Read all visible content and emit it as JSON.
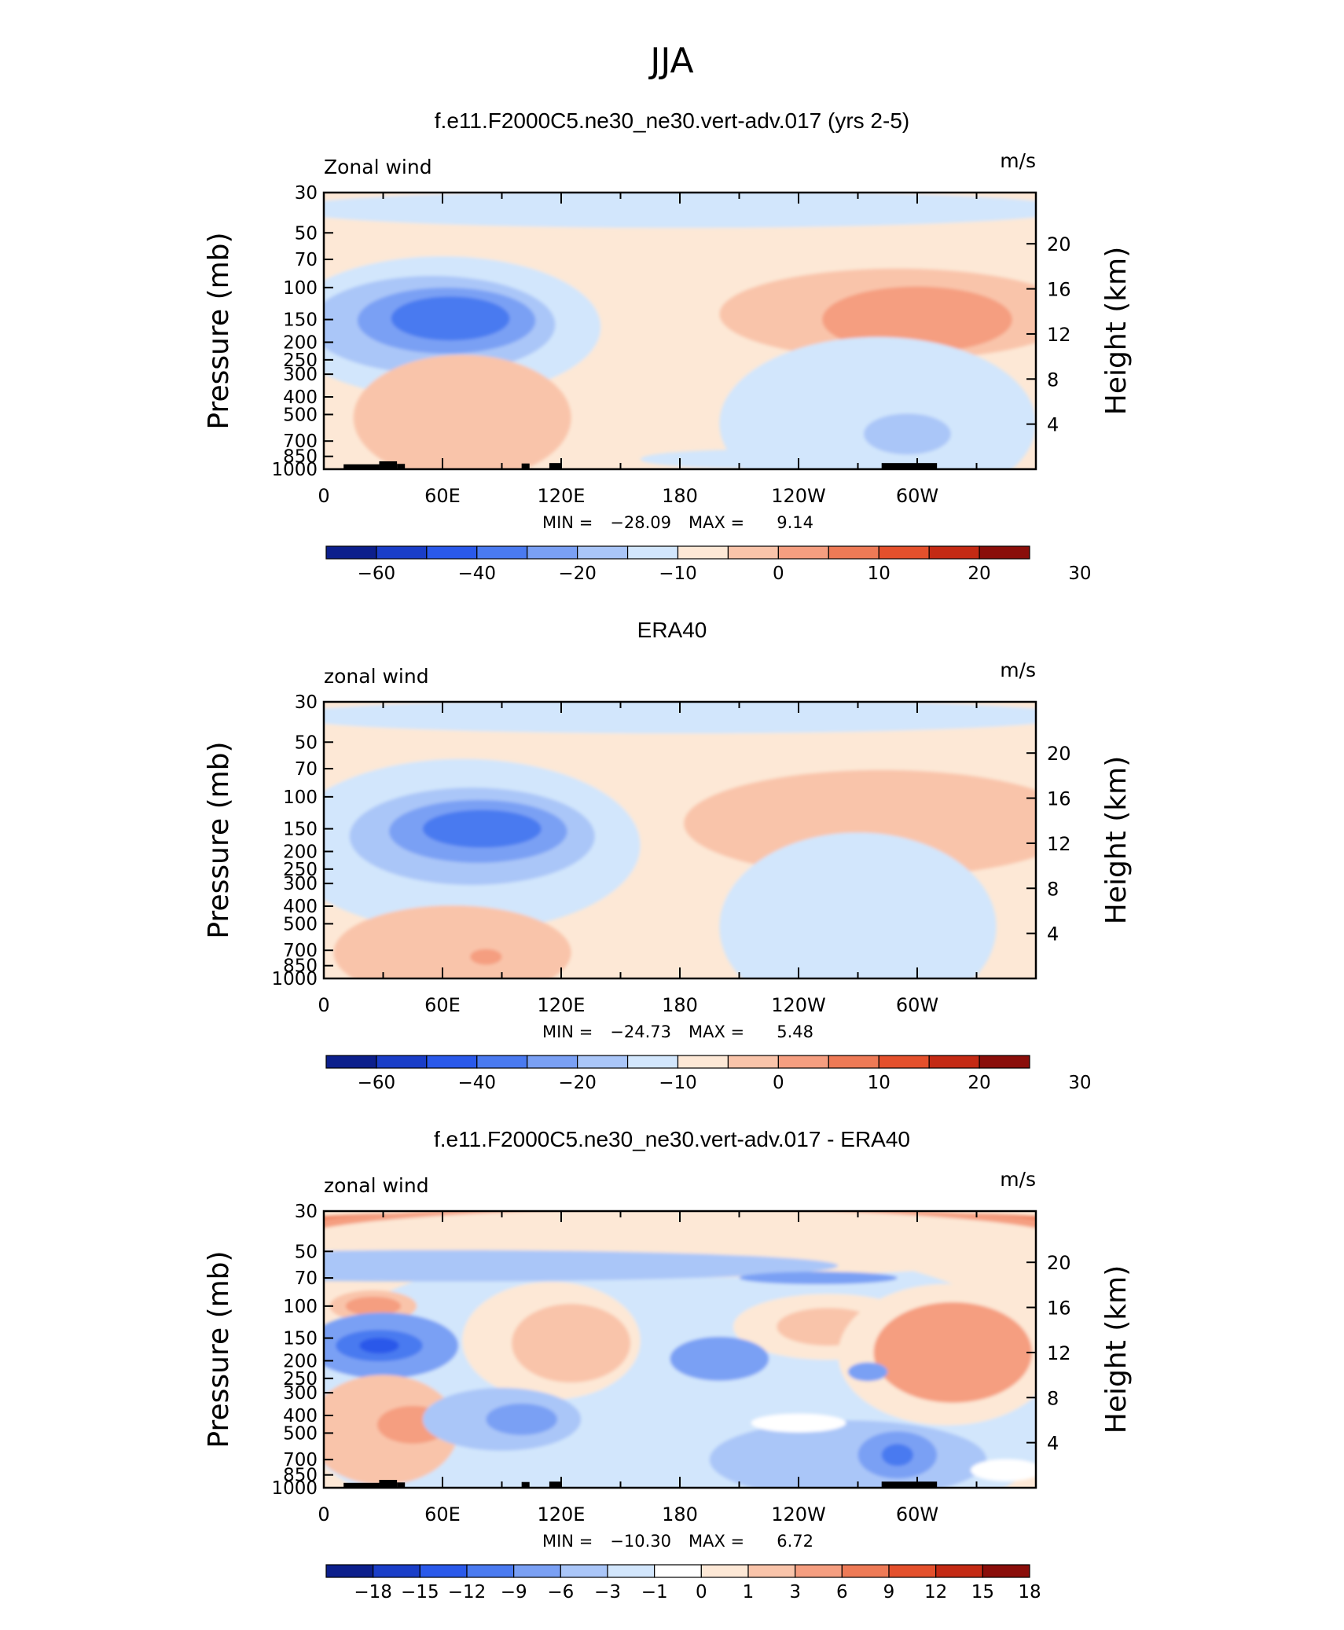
{
  "main_title": "JJA",
  "colors": {
    "wind_palette": [
      "#0c1f8c",
      "#1a3ec8",
      "#2a59ea",
      "#4a7af0",
      "#7aa0f4",
      "#aac6f8",
      "#d2e6fc",
      "#fde8d6",
      "#f9c4aa",
      "#f59e80",
      "#ee7a56",
      "#e4502c",
      "#c42a14",
      "#8a0e0a"
    ],
    "diff_palette": [
      "#0c1f8c",
      "#1a3ec8",
      "#2a59ea",
      "#4a7af0",
      "#7aa0f4",
      "#aac6f8",
      "#d2e6fc",
      "#ffffff",
      "#fde8d6",
      "#f9c4aa",
      "#f59e80",
      "#ee7a56",
      "#e4502c",
      "#c42a14",
      "#8a0e0a"
    ],
    "land": "#000000"
  },
  "panels": [
    {
      "title": "f.e11.F2000C5.ne30_ne30.vert-adv.017 (yrs 2-5)",
      "left_label": "Zonal wind",
      "right_label": "m/s",
      "min_label": "MIN =",
      "min_value": "−28.09",
      "max_label": "MAX =",
      "max_value": "9.14",
      "colorbar_labels": [
        "−60",
        "−40",
        "−20",
        "−10",
        "0",
        "10",
        "20",
        "30"
      ],
      "show_land": true
    },
    {
      "title": "ERA40",
      "left_label": "zonal wind",
      "right_label": "m/s",
      "min_label": "MIN =",
      "min_value": "−24.73",
      "max_label": "MAX =",
      "max_value": "5.48",
      "colorbar_labels": [
        "−60",
        "−40",
        "−20",
        "−10",
        "0",
        "10",
        "20",
        "30"
      ],
      "show_land": false
    },
    {
      "title": "f.e11.F2000C5.ne30_ne30.vert-adv.017 - ERA40",
      "left_label": "zonal wind",
      "right_label": "m/s",
      "min_label": "MIN =",
      "min_value": "−10.30",
      "max_label": "MAX =",
      "max_value": "6.72",
      "colorbar_labels": [
        "−18",
        "−15",
        "−12",
        "−9",
        "−6",
        "−3",
        "−1",
        "0",
        "1",
        "3",
        "6",
        "9",
        "12",
        "15",
        "18"
      ],
      "show_land": true
    }
  ],
  "chart_data": [
    {
      "type": "heatmap",
      "title": "f.e11.F2000C5.ne30_ne30.vert-adv.017 (yrs 2-5)",
      "field": "Zonal wind",
      "units": "m/s",
      "xlabel": "",
      "ylabel": "Pressure (mb)",
      "y2label": "Height (km)",
      "x_ticks": [
        "0",
        "60E",
        "120E",
        "180",
        "120W",
        "60W"
      ],
      "y_ticks": [
        30,
        50,
        70,
        100,
        150,
        200,
        250,
        300,
        400,
        500,
        700,
        850,
        1000
      ],
      "y2_ticks": [
        4,
        8,
        12,
        16,
        20
      ],
      "ylim": [
        1000,
        30
      ],
      "y_scale": "log",
      "levels": [
        -60,
        -40,
        -20,
        -10,
        0,
        10,
        20,
        30
      ],
      "min": -28.09,
      "max": 9.14
    },
    {
      "type": "heatmap",
      "title": "ERA40",
      "field": "zonal wind",
      "units": "m/s",
      "xlabel": "",
      "ylabel": "Pressure (mb)",
      "y2label": "Height (km)",
      "x_ticks": [
        "0",
        "60E",
        "120E",
        "180",
        "120W",
        "60W"
      ],
      "y_ticks": [
        30,
        50,
        70,
        100,
        150,
        200,
        250,
        300,
        400,
        500,
        700,
        850,
        1000
      ],
      "y2_ticks": [
        4,
        8,
        12,
        16,
        20
      ],
      "ylim": [
        1000,
        30
      ],
      "y_scale": "log",
      "levels": [
        -60,
        -40,
        -20,
        -10,
        0,
        10,
        20,
        30
      ],
      "min": -24.73,
      "max": 5.48
    },
    {
      "type": "heatmap",
      "title": "f.e11.F2000C5.ne30_ne30.vert-adv.017 - ERA40",
      "field": "zonal wind",
      "units": "m/s",
      "xlabel": "",
      "ylabel": "Pressure (mb)",
      "y2label": "Height (km)",
      "x_ticks": [
        "0",
        "60E",
        "120E",
        "180",
        "120W",
        "60W"
      ],
      "y_ticks": [
        30,
        50,
        70,
        100,
        150,
        200,
        250,
        300,
        400,
        500,
        700,
        850,
        1000
      ],
      "y2_ticks": [
        4,
        8,
        12,
        16,
        20
      ],
      "ylim": [
        1000,
        30
      ],
      "y_scale": "log",
      "levels": [
        -18,
        -15,
        -12,
        -9,
        -6,
        -3,
        -1,
        0,
        1,
        3,
        6,
        9,
        12,
        15,
        18
      ],
      "min": -10.3,
      "max": 6.72
    }
  ]
}
